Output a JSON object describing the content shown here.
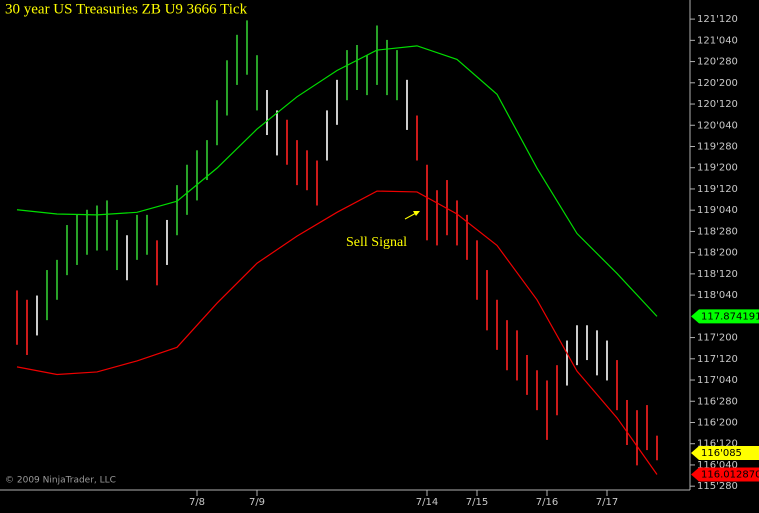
{
  "chart_data": {
    "type": "hilo",
    "title": "30 year US Treasuries ZB U9 3666 Tick",
    "copyright": "© 2009 NinjaTrader, LLC",
    "categories": [
      null,
      null,
      null,
      null,
      null,
      null,
      null,
      null,
      null,
      null,
      null,
      null,
      null,
      null,
      null,
      null,
      null,
      null,
      "7/8",
      null,
      null,
      null,
      null,
      null,
      "7/9",
      null,
      null,
      null,
      null,
      null,
      null,
      null,
      null,
      null,
      null,
      null,
      null,
      null,
      null,
      null,
      null,
      "7/14",
      null,
      null,
      null,
      null,
      "7/15",
      null,
      null,
      null,
      null,
      null,
      null,
      "7/16",
      null,
      null,
      null,
      null,
      null,
      "7/17",
      null,
      null,
      null,
      null,
      null
    ],
    "high": [
      118.18,
      118.07,
      118.12,
      118.42,
      118.54,
      118.95,
      119.07,
      119.13,
      119.18,
      119.24,
      119.01,
      118.83,
      119.07,
      119.07,
      118.77,
      119.01,
      119.42,
      119.66,
      119.83,
      119.95,
      120.42,
      120.89,
      121.19,
      121.36,
      120.95,
      120.54,
      120.3,
      120.19,
      119.95,
      119.83,
      119.71,
      120.3,
      120.66,
      121.01,
      121.07,
      120.95,
      121.3,
      121.13,
      121.01,
      120.66,
      120.24,
      119.66,
      119.36,
      119.48,
      119.24,
      119.07,
      118.77,
      118.42,
      118.07,
      117.83,
      117.71,
      117.42,
      117.24,
      117.12,
      117.3,
      117.59,
      117.77,
      117.77,
      117.71,
      117.59,
      117.36,
      116.89,
      116.77,
      116.83,
      116.47
    ],
    "low": [
      117.54,
      117.42,
      117.65,
      117.83,
      118.07,
      118.36,
      118.48,
      118.6,
      118.65,
      118.65,
      118.42,
      118.3,
      118.54,
      118.6,
      118.24,
      118.48,
      118.83,
      119.07,
      119.24,
      119.48,
      119.89,
      120.24,
      120.6,
      120.72,
      120.3,
      120.01,
      119.77,
      119.66,
      119.42,
      119.36,
      119.18,
      119.71,
      120.13,
      120.42,
      120.54,
      120.48,
      120.6,
      120.48,
      120.42,
      120.07,
      119.71,
      118.77,
      118.71,
      118.83,
      118.71,
      118.54,
      118.07,
      117.71,
      117.48,
      117.24,
      117.12,
      116.95,
      116.77,
      116.42,
      116.71,
      117.06,
      117.3,
      117.36,
      117.18,
      117.12,
      116.77,
      116.36,
      116.12,
      116.3,
      116.18
    ],
    "colors": [
      "#ff2020",
      "#ff2020",
      "#ffffff",
      "#33cc33",
      "#33cc33",
      "#33cc33",
      "#33cc33",
      "#33cc33",
      "#33cc33",
      "#33cc33",
      "#33cc33",
      "#ffffff",
      "#33cc33",
      "#33cc33",
      "#ff2020",
      "#ffffff",
      "#33cc33",
      "#33cc33",
      "#33cc33",
      "#33cc33",
      "#33cc33",
      "#33cc33",
      "#33cc33",
      "#33cc33",
      "#33cc33",
      "#ffffff",
      "#ffffff",
      "#ff2020",
      "#ff2020",
      "#ff2020",
      "#ff2020",
      "#ffffff",
      "#ffffff",
      "#33cc33",
      "#33cc33",
      "#33cc33",
      "#33cc33",
      "#33cc33",
      "#33cc33",
      "#ffffff",
      "#ff2020",
      "#ff2020",
      "#ff2020",
      "#ff2020",
      "#ff2020",
      "#ff2020",
      "#ff2020",
      "#ff2020",
      "#ff2020",
      "#ff2020",
      "#ff2020",
      "#ff2020",
      "#ff2020",
      "#ff2020",
      "#ff2020",
      "#ffffff",
      "#ffffff",
      "#ffffff",
      "#ffffff",
      "#ffffff",
      "#ff2020",
      "#ff2020",
      "#ff2020",
      "#ff2020",
      "#ff2020"
    ],
    "lines": [
      {
        "color": "#00dd00",
        "x": [
          0,
          4,
          8,
          12,
          16,
          20,
          24,
          28,
          32,
          36,
          40,
          44,
          48,
          52,
          56,
          60,
          64
        ],
        "values": [
          119.13,
          119.08,
          119.07,
          119.1,
          119.23,
          119.62,
          120.08,
          120.46,
          120.77,
          121.01,
          121.06,
          120.9,
          120.49,
          119.62,
          118.85,
          118.38,
          117.874191
        ]
      },
      {
        "color": "#ee0000",
        "x": [
          0,
          4,
          8,
          12,
          16,
          20,
          24,
          28,
          32,
          36,
          40,
          44,
          48,
          52,
          56,
          60,
          64
        ],
        "values": [
          117.28,
          117.19,
          117.22,
          117.35,
          117.51,
          118.03,
          118.5,
          118.82,
          119.1,
          119.35,
          119.34,
          119.08,
          118.71,
          118.07,
          117.23,
          116.68,
          116.01287
        ]
      }
    ],
    "markers": [
      {
        "value": 117.874191,
        "label": "117.874191",
        "color": "#00ff00"
      },
      {
        "value": 116.265625,
        "label": "116'085",
        "color": "#ffff00"
      },
      {
        "value": 116.01287,
        "label": "116.012870",
        "color": "#ff0000"
      }
    ],
    "annotation": "Sell Signal",
    "ylim": [
      115.83,
      121.6
    ],
    "yticks": [
      {
        "value": 121.375,
        "label": "121'120"
      },
      {
        "value": 121.125,
        "label": "121'040"
      },
      {
        "value": 120.875,
        "label": "120'280"
      },
      {
        "value": 120.625,
        "label": "120'200"
      },
      {
        "value": 120.375,
        "label": "120'120"
      },
      {
        "value": 120.125,
        "label": "120'040"
      },
      {
        "value": 119.875,
        "label": "119'280"
      },
      {
        "value": 119.625,
        "label": "119'200"
      },
      {
        "value": 119.375,
        "label": "119'120"
      },
      {
        "value": 119.125,
        "label": "119'040"
      },
      {
        "value": 118.875,
        "label": "118'280"
      },
      {
        "value": 118.625,
        "label": "118'200"
      },
      {
        "value": 118.375,
        "label": "118'120"
      },
      {
        "value": 118.125,
        "label": "118'040"
      },
      {
        "value": 117.625,
        "label": "117'200"
      },
      {
        "value": 117.375,
        "label": "117'120"
      },
      {
        "value": 117.125,
        "label": "117'040"
      },
      {
        "value": 116.875,
        "label": "116'280"
      },
      {
        "value": 116.625,
        "label": "116'200"
      },
      {
        "value": 116.375,
        "label": "116'120"
      },
      {
        "value": 116.125,
        "label": "116'040"
      },
      {
        "value": 115.875,
        "label": "115'280"
      }
    ]
  }
}
